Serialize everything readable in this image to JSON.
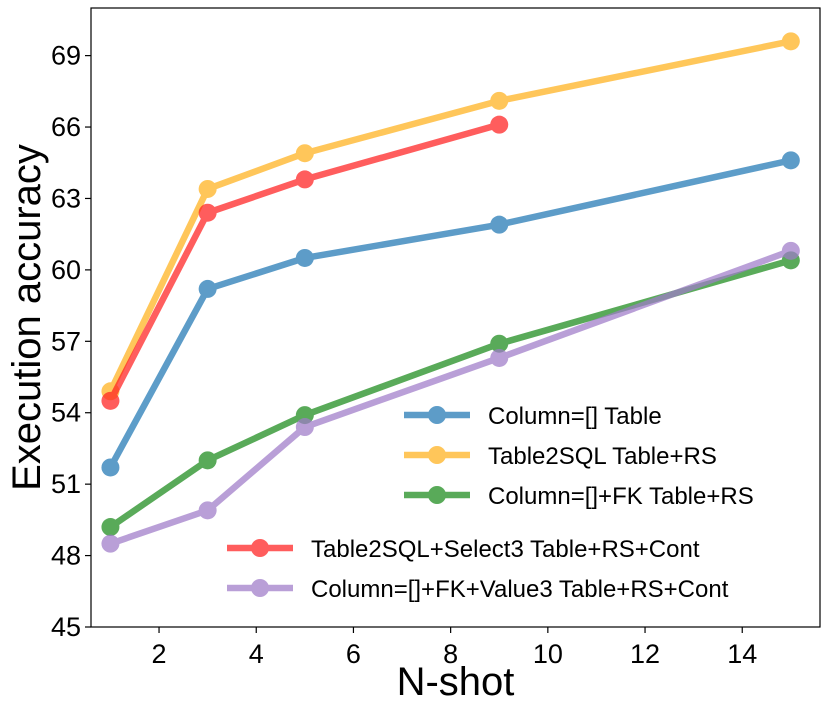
{
  "chart_data": {
    "type": "line",
    "xlabel": "N-shot",
    "ylabel": "Execution accuracy",
    "xlim": [
      0.6,
      15.6
    ],
    "ylim": [
      45,
      71
    ],
    "xticks": [
      2,
      4,
      6,
      8,
      10,
      12,
      14
    ],
    "yticks": [
      45,
      48,
      51,
      54,
      57,
      60,
      63,
      66,
      69
    ],
    "grid": false,
    "series": [
      {
        "name": "Column=[] Table",
        "color": "#1f77b4",
        "x": [
          1,
          3,
          5,
          9,
          15
        ],
        "y": [
          51.7,
          59.2,
          60.5,
          61.9,
          64.6
        ]
      },
      {
        "name": "Table2SQL Table+RS",
        "color": "#ffb11b",
        "x": [
          1,
          3,
          5,
          9,
          15
        ],
        "y": [
          54.9,
          63.4,
          64.9,
          67.1,
          69.6
        ]
      },
      {
        "name": "Column=[]+FK Table+RS",
        "color": "#1a8a1a",
        "x": [
          1,
          3,
          5,
          9,
          15
        ],
        "y": [
          49.2,
          52.0,
          53.9,
          56.9,
          60.4
        ]
      },
      {
        "name": "Table2SQL+Select3 Table+RS+Cont",
        "color": "#ff2020",
        "x": [
          1,
          3,
          5,
          9
        ],
        "y": [
          54.5,
          62.4,
          63.8,
          66.1
        ]
      },
      {
        "name": "Column=[]+FK+Value3 Table+RS+Cont",
        "color": "#9f7bc9",
        "x": [
          1,
          3,
          5,
          9,
          15
        ],
        "y": [
          48.5,
          49.9,
          53.4,
          56.3,
          60.8
        ]
      }
    ],
    "legend": [
      "upper-right-group",
      "lower-right-group"
    ]
  }
}
